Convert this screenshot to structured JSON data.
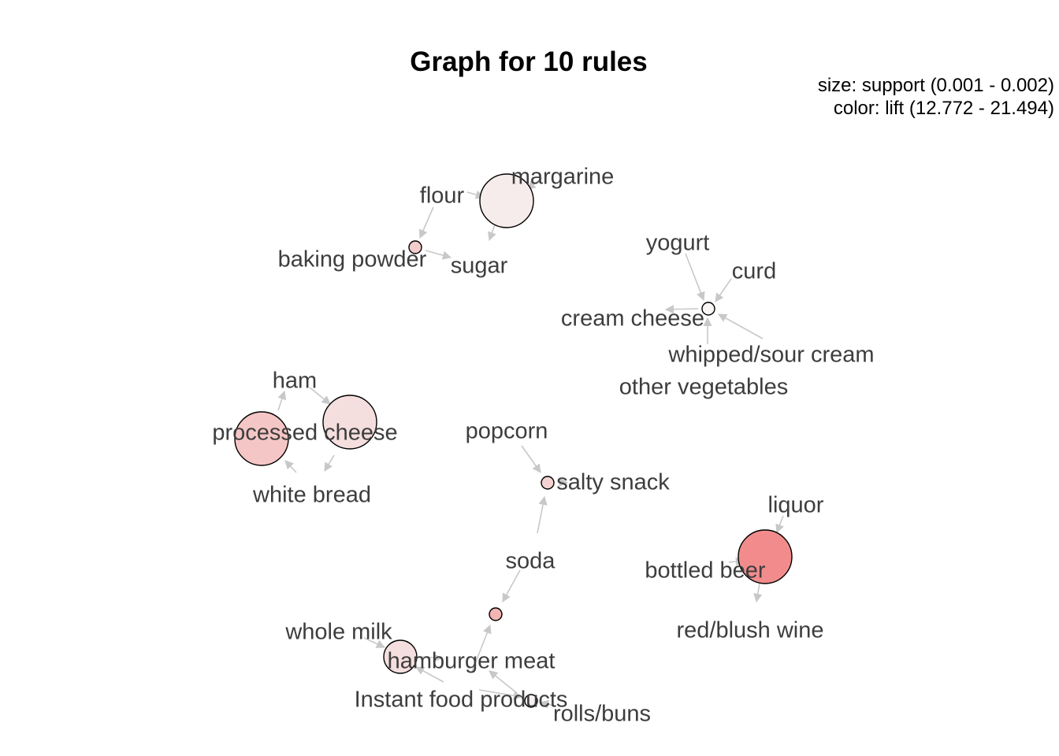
{
  "title": "Graph for 10 rules",
  "legend": {
    "size": "size: support (0.001 - 0.002)",
    "color": "color: lift (12.772 - 21.494)"
  },
  "colors": {
    "edge": "#c8c8c8",
    "node_stroke": "#000000",
    "label": "#3d3d3d"
  },
  "items": [
    {
      "id": "margarine",
      "label": "margarine"
    },
    {
      "id": "flour",
      "label": "flour"
    },
    {
      "id": "baking_powder",
      "label": "baking powder"
    },
    {
      "id": "sugar",
      "label": "sugar"
    },
    {
      "id": "yogurt",
      "label": "yogurt"
    },
    {
      "id": "curd",
      "label": "curd"
    },
    {
      "id": "cream_cheese",
      "label": "cream cheese"
    },
    {
      "id": "whipped_sour_cream",
      "label": "whipped/sour cream"
    },
    {
      "id": "other_vegetables",
      "label": "other vegetables"
    },
    {
      "id": "ham",
      "label": "ham"
    },
    {
      "id": "processed_cheese",
      "label": "processed cheese"
    },
    {
      "id": "white_bread",
      "label": "white bread"
    },
    {
      "id": "popcorn",
      "label": "popcorn"
    },
    {
      "id": "salty_snack",
      "label": "salty snack"
    },
    {
      "id": "liquor",
      "label": "liquor"
    },
    {
      "id": "bottled_beer",
      "label": "bottled beer"
    },
    {
      "id": "red_blush_wine",
      "label": "red/blush wine"
    },
    {
      "id": "soda",
      "label": "soda"
    },
    {
      "id": "whole_milk",
      "label": "whole milk"
    },
    {
      "id": "hamburger_meat",
      "label": "hamburger meat"
    },
    {
      "id": "instant_food_products",
      "label": "Instant food products"
    },
    {
      "id": "rolls_buns",
      "label": "rolls/buns"
    }
  ],
  "rules": [
    {
      "id": "r1",
      "lhs": [
        "flour",
        "margarine"
      ],
      "rhs": "sugar",
      "support": 0.002,
      "color": "#f5eceb"
    },
    {
      "id": "r2",
      "lhs": [
        "flour"
      ],
      "rhs": "baking_powder",
      "support": 0.001,
      "color": "#f3cccc"
    },
    {
      "id": "r3",
      "lhs": [
        "yogurt",
        "curd",
        "whipped_sour_cream",
        "other_vegetables"
      ],
      "rhs": "cream_cheese",
      "support": 0.001,
      "color": "#faf6f6"
    },
    {
      "id": "r4",
      "lhs": [
        "white_bread",
        "ham"
      ],
      "rhs": "processed_cheese",
      "support": 0.002,
      "color": "#f5c6c6"
    },
    {
      "id": "r5",
      "lhs": [
        "ham",
        "processed_cheese"
      ],
      "rhs": "white_bread",
      "support": 0.002,
      "color": "#f5dede"
    },
    {
      "id": "r6",
      "lhs": [
        "popcorn",
        "soda"
      ],
      "rhs": "salty_snack",
      "support": 0.001,
      "color": "#f4d2d2"
    },
    {
      "id": "r7",
      "lhs": [
        "liquor",
        "red_blush_wine"
      ],
      "rhs": "bottled_beer",
      "support": 0.002,
      "color": "#f28c8c"
    },
    {
      "id": "r8",
      "lhs": [
        "soda",
        "hamburger_meat"
      ],
      "rhs": "instant_food_products",
      "support": 0.001,
      "color": "#f3b4b4"
    },
    {
      "id": "r9",
      "lhs": [
        "whole_milk",
        "instant_food_products"
      ],
      "rhs": "hamburger_meat",
      "support": 0.0015,
      "color": "#f5dede"
    },
    {
      "id": "r10",
      "lhs": [
        "rolls_buns",
        "instant_food_products"
      ],
      "rhs": "hamburger_meat",
      "support": 0.001,
      "color": "#f8f0f0"
    }
  ]
}
